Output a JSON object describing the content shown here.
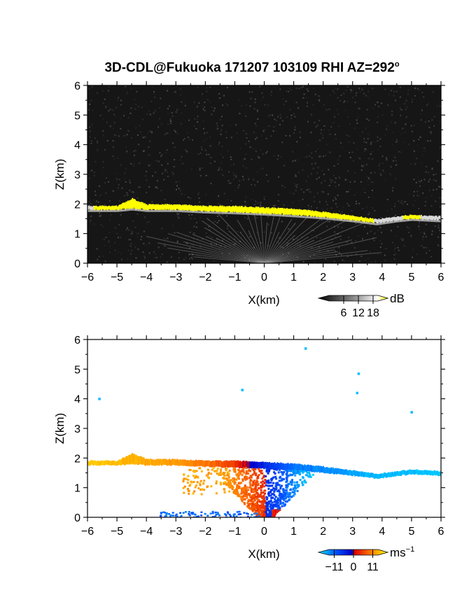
{
  "title": {
    "text": "3D-CDL@Fukuoka 171207 103109 RHI AZ=292",
    "degree_symbol": "o"
  },
  "chart_data": [
    {
      "type": "heatmap",
      "name": "reflectivity-panel",
      "xlabel": "X(km)",
      "ylabel": "Z(km)",
      "xlim": [
        -6,
        6
      ],
      "ylim": [
        0,
        6
      ],
      "x_ticks": [
        -6,
        -5,
        -4,
        -3,
        -2,
        -1,
        0,
        1,
        2,
        3,
        4,
        5,
        6
      ],
      "y_ticks": [
        0,
        1,
        2,
        3,
        4,
        5,
        6
      ],
      "colorbar": {
        "unit": "dB",
        "tick_labels": [
          "6",
          "12",
          "18"
        ],
        "ticks": [
          6,
          12,
          18
        ],
        "range": [
          0,
          20
        ],
        "colors": [
          "#000000",
          "#ffffff",
          "#ffff00"
        ]
      },
      "background_color": "#161616",
      "features": {
        "bright_layer": {
          "x": [
            -6,
            -5,
            -4.5,
            -4,
            -3,
            -2,
            -1,
            0,
            1,
            2,
            3,
            3.8,
            4.5,
            5,
            6
          ],
          "z_top": [
            1.95,
            1.95,
            2.2,
            2.0,
            2.0,
            1.95,
            1.95,
            1.9,
            1.85,
            1.75,
            1.62,
            1.5,
            1.6,
            1.65,
            1.6
          ],
          "z_bottom": [
            1.8,
            1.8,
            1.85,
            1.8,
            1.8,
            1.75,
            1.72,
            1.68,
            1.62,
            1.55,
            1.45,
            1.35,
            1.45,
            1.5,
            1.45
          ],
          "value_dB": 20
        },
        "ground_clutter_origin": [
          0,
          0
        ]
      }
    },
    {
      "type": "scatter",
      "name": "doppler-velocity-panel",
      "xlabel": "X(km)",
      "ylabel": "Z(km)",
      "xlim": [
        -6,
        6
      ],
      "ylim": [
        0,
        6
      ],
      "x_ticks": [
        -6,
        -5,
        -4,
        -3,
        -2,
        -1,
        0,
        1,
        2,
        3,
        4,
        5,
        6
      ],
      "y_ticks": [
        0,
        1,
        2,
        3,
        4,
        5,
        6
      ],
      "colorbar": {
        "unit": "ms",
        "unit_superscript": "−1",
        "tick_labels": [
          "−11",
          "0",
          "11"
        ],
        "ticks": [
          -11,
          0,
          11
        ],
        "range": [
          -14,
          14
        ],
        "colors": [
          "#00ffff",
          "#0066ff",
          "#0000ff",
          "#ff0000",
          "#ff8800",
          "#ffff00"
        ]
      },
      "isolated_points": [
        {
          "x": -5.6,
          "z": 4.0,
          "v": -11
        },
        {
          "x": -0.75,
          "z": 4.3,
          "v": -11
        },
        {
          "x": 1.4,
          "z": 5.7,
          "v": -11
        },
        {
          "x": 3.2,
          "z": 4.85,
          "v": -11
        },
        {
          "x": 3.15,
          "z": 4.2,
          "v": -11
        },
        {
          "x": 5.0,
          "z": 3.55,
          "v": -11
        }
      ],
      "layer": {
        "x": [
          -6,
          -5,
          -4,
          -3,
          -2,
          -1,
          0,
          1,
          2,
          3,
          4,
          5,
          6
        ],
        "velocity": [
          11,
          10,
          9,
          8,
          6,
          3,
          -4,
          -8,
          -9,
          -10,
          -11,
          -11,
          -12
        ]
      }
    }
  ]
}
